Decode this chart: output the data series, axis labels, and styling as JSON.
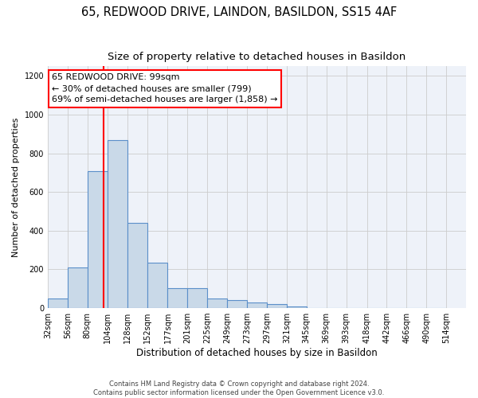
{
  "title_line1": "65, REDWOOD DRIVE, LAINDON, BASILDON, SS15 4AF",
  "title_line2": "Size of property relative to detached houses in Basildon",
  "xlabel": "Distribution of detached houses by size in Basildon",
  "ylabel": "Number of detached properties",
  "footnote1": "Contains HM Land Registry data © Crown copyright and database right 2024.",
  "footnote2": "Contains public sector information licensed under the Open Government Licence v3.0.",
  "annotation_line1": "65 REDWOOD DRIVE: 99sqm",
  "annotation_line2": "← 30% of detached houses are smaller (799)",
  "annotation_line3": "69% of semi-detached houses are larger (1,858) →",
  "bar_edges": [
    32,
    56,
    80,
    104,
    128,
    152,
    177,
    201,
    225,
    249,
    273,
    297,
    321,
    345,
    369,
    393,
    418,
    442,
    466,
    490,
    514
  ],
  "bar_heights": [
    50,
    210,
    710,
    870,
    440,
    235,
    105,
    105,
    50,
    40,
    30,
    20,
    10,
    0,
    0,
    0,
    0,
    0,
    0,
    0
  ],
  "bar_color": "#c9d9e8",
  "bar_edgecolor": "#5b8fc9",
  "property_line_x": 99,
  "property_line_color": "red",
  "ylim": [
    0,
    1250
  ],
  "yticks": [
    0,
    200,
    400,
    600,
    800,
    1000,
    1200
  ],
  "grid_color": "#cccccc",
  "bg_color": "#eef2f9",
  "title_fontsize": 10.5,
  "subtitle_fontsize": 9.5,
  "tick_label_fontsize": 7,
  "axis_label_fontsize": 8.5,
  "ylabel_fontsize": 8,
  "footnote_fontsize": 6,
  "annotation_fontsize": 8
}
